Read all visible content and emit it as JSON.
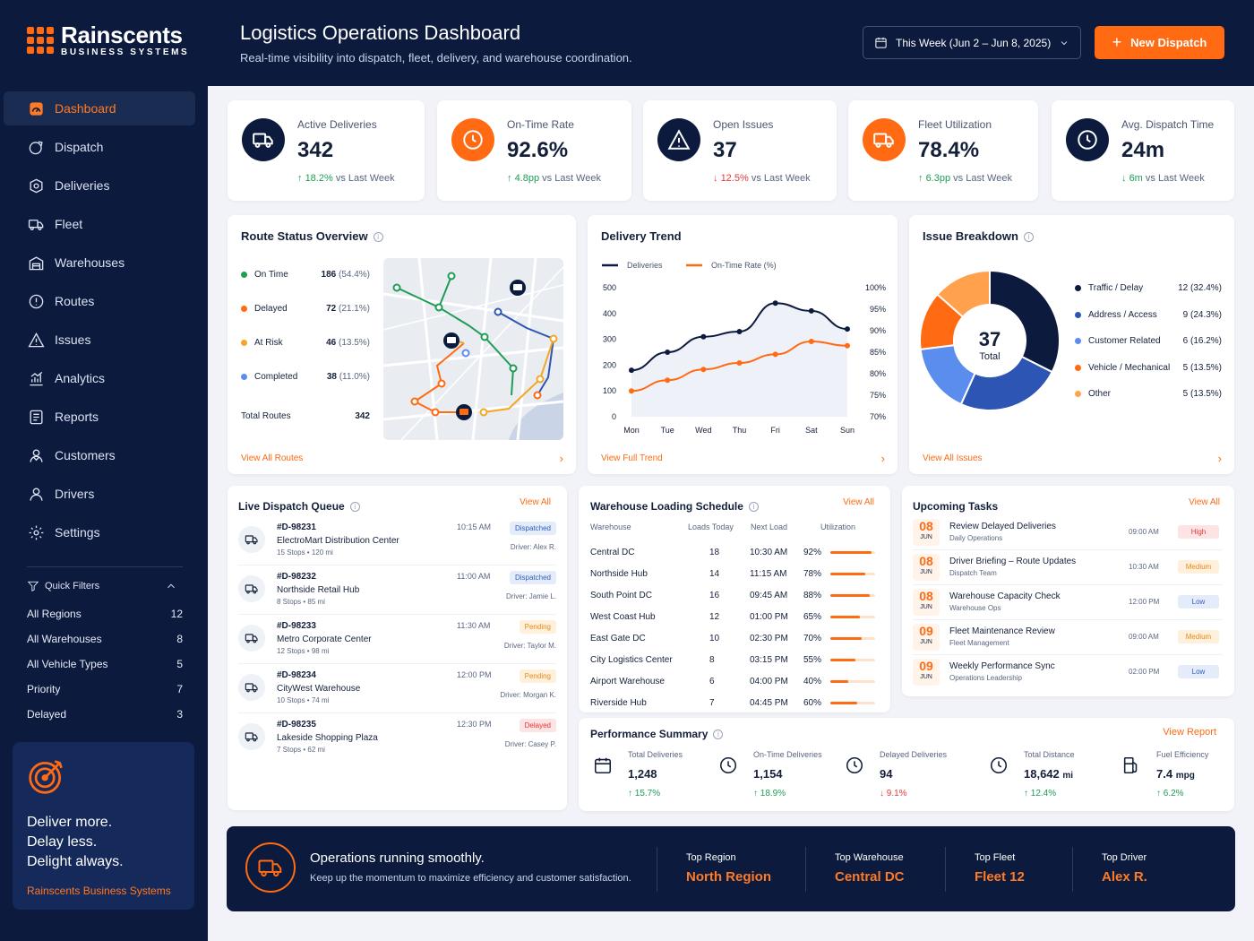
{
  "brand": {
    "name": "Rainscents",
    "sub": "BUSINESS SYSTEMS"
  },
  "nav": [
    {
      "label": "Dashboard",
      "icon": "dashboard-icon",
      "active": true
    },
    {
      "label": "Dispatch",
      "icon": "dispatch-icon"
    },
    {
      "label": "Deliveries",
      "icon": "deliveries-icon"
    },
    {
      "label": "Fleet",
      "icon": "truck-icon"
    },
    {
      "label": "Warehouses",
      "icon": "warehouse-icon"
    },
    {
      "label": "Routes",
      "icon": "routes-icon"
    },
    {
      "label": "Issues",
      "icon": "warning-icon"
    },
    {
      "label": "Analytics",
      "icon": "analytics-icon"
    },
    {
      "label": "Reports",
      "icon": "reports-icon"
    },
    {
      "label": "Customers",
      "icon": "customers-icon"
    },
    {
      "label": "Drivers",
      "icon": "driver-icon"
    },
    {
      "label": "Settings",
      "icon": "gear-icon"
    }
  ],
  "quick_filters": {
    "title": "Quick Filters",
    "items": [
      {
        "label": "All Regions",
        "count": "12"
      },
      {
        "label": "All Warehouses",
        "count": "8"
      },
      {
        "label": "All Vehicle Types",
        "count": "5"
      },
      {
        "label": "Priority",
        "count": "7"
      },
      {
        "label": "Delayed",
        "count": "3"
      }
    ]
  },
  "promo": {
    "line1": "Deliver more.",
    "line2": "Delay less.",
    "line3": "Delight always.",
    "brand": "Rainscents Business Systems"
  },
  "header": {
    "title": "Logistics Operations Dashboard",
    "subtitle": "Real-time visibility into dispatch, fleet, delivery, and warehouse coordination.",
    "date_range": "This Week (Jun 2 – Jun 8, 2025)",
    "new_dispatch": "New Dispatch"
  },
  "kpis": [
    {
      "label": "Active Deliveries",
      "value": "342",
      "delta": "18.2%",
      "dir": "up",
      "suffix": "vs Last Week",
      "color": "#0c1b3d",
      "icon": "truck-icon"
    },
    {
      "label": "On-Time Rate",
      "value": "92.6%",
      "delta": "4.8pp",
      "dir": "up",
      "suffix": "vs Last Week",
      "color": "#ff6a13",
      "icon": "clock-icon"
    },
    {
      "label": "Open Issues",
      "value": "37",
      "delta": "12.5%",
      "dir": "down",
      "suffix": "vs Last Week",
      "color": "#0c1b3d",
      "icon": "warning-icon"
    },
    {
      "label": "Fleet Utilization",
      "value": "78.4%",
      "delta": "6.3pp",
      "dir": "up",
      "suffix": "vs Last Week",
      "color": "#ff6a13",
      "icon": "truck-icon"
    },
    {
      "label": "Avg. Dispatch Time",
      "value": "24m",
      "delta": "6m",
      "dir": "down-good",
      "suffix": "vs Last Week",
      "color": "#0c1b3d",
      "icon": "clock-icon"
    }
  ],
  "route_status": {
    "title": "Route Status Overview",
    "items": [
      {
        "label": "On Time",
        "value": "186",
        "pct": "(54.4%)",
        "color": "#1f9d55"
      },
      {
        "label": "Delayed",
        "value": "72",
        "pct": "(21.1%)",
        "color": "#ff6a13"
      },
      {
        "label": "At Risk",
        "value": "46",
        "pct": "(13.5%)",
        "color": "#f5a623"
      },
      {
        "label": "Completed",
        "value": "38",
        "pct": "(11.0%)",
        "color": "#5b8def"
      }
    ],
    "total_label": "Total Routes",
    "total": "342",
    "link": "View All Routes"
  },
  "delivery_trend": {
    "title": "Delivery Trend",
    "link": "View Full Trend"
  },
  "chart_data": {
    "type": "line",
    "categories": [
      "Mon",
      "Tue",
      "Wed",
      "Thu",
      "Fri",
      "Sat",
      "Sun"
    ],
    "series": [
      {
        "name": "Deliveries",
        "axis": "left",
        "color": "#0c1b3d",
        "values": [
          180,
          250,
          310,
          330,
          440,
          410,
          340
        ]
      },
      {
        "name": "On-Time Rate (%)",
        "axis": "right",
        "color": "#ff6a13",
        "values": [
          76,
          78.5,
          81,
          82.5,
          84.5,
          87.5,
          86.5
        ]
      }
    ],
    "y_left": {
      "ticks": [
        "0",
        "100",
        "200",
        "300",
        "400",
        "500"
      ],
      "range": [
        0,
        500
      ]
    },
    "y_right": {
      "ticks": [
        "70%",
        "75%",
        "80%",
        "85%",
        "90%",
        "95%",
        "100%"
      ],
      "range": [
        70,
        100
      ]
    }
  },
  "issues": {
    "title": "Issue Breakdown",
    "total": "37",
    "total_label": "Total",
    "link": "View All Issues",
    "items": [
      {
        "label": "Traffic / Delay",
        "value": "12",
        "pct": "(32.4%)",
        "color": "#0c1b3d",
        "share": 32.4
      },
      {
        "label": "Address / Access",
        "value": "9",
        "pct": "(24.3%)",
        "color": "#2d55b4",
        "share": 24.3
      },
      {
        "label": "Customer Related",
        "value": "6",
        "pct": "(16.2%)",
        "color": "#5b8def",
        "share": 16.2
      },
      {
        "label": "Vehicle / Mechanical",
        "value": "5",
        "pct": "(13.5%)",
        "color": "#ff6a13",
        "share": 13.5
      },
      {
        "label": "Other",
        "value": "5",
        "pct": "(13.5%)",
        "color": "#ffa14d",
        "share": 13.5
      }
    ]
  },
  "dispatch_queue": {
    "title": "Live Dispatch Queue",
    "link": "View All",
    "items": [
      {
        "id": "#D-98231",
        "place": "ElectroMart Distribution Center",
        "meta": "15 Stops • 120 mi",
        "time": "10:15 AM",
        "status": "Dispatched",
        "cls": "dispatched",
        "driver": "Driver: Alex R."
      },
      {
        "id": "#D-98232",
        "place": "Northside Retail Hub",
        "meta": "8 Stops • 85 mi",
        "time": "11:00 AM",
        "status": "Dispatched",
        "cls": "dispatched",
        "driver": "Driver: Jamie L."
      },
      {
        "id": "#D-98233",
        "place": "Metro Corporate Center",
        "meta": "12 Stops • 98 mi",
        "time": "11:30 AM",
        "status": "Pending",
        "cls": "pending",
        "driver": "Driver: Taylor M."
      },
      {
        "id": "#D-98234",
        "place": "CityWest Warehouse",
        "meta": "10 Stops • 74 mi",
        "time": "12:00 PM",
        "status": "Pending",
        "cls": "pending",
        "driver": "Driver: Morgan K."
      },
      {
        "id": "#D-98235",
        "place": "Lakeside Shopping Plaza",
        "meta": "7 Stops • 62 mi",
        "time": "12:30 PM",
        "status": "Delayed",
        "cls": "delayed",
        "driver": "Driver: Casey P."
      }
    ]
  },
  "warehouse": {
    "title": "Warehouse Loading Schedule",
    "link": "View All",
    "cols": [
      "Warehouse",
      "Loads Today",
      "Next Load",
      "Utilization"
    ],
    "rows": [
      {
        "name": "Central DC",
        "loads": "18",
        "next": "10:30 AM",
        "util": "92%",
        "u": 92
      },
      {
        "name": "Northside Hub",
        "loads": "14",
        "next": "11:15 AM",
        "util": "78%",
        "u": 78
      },
      {
        "name": "South Point DC",
        "loads": "16",
        "next": "09:45 AM",
        "util": "88%",
        "u": 88
      },
      {
        "name": "West Coast Hub",
        "loads": "12",
        "next": "01:00 PM",
        "util": "65%",
        "u": 65
      },
      {
        "name": "East Gate DC",
        "loads": "10",
        "next": "02:30 PM",
        "util": "70%",
        "u": 70
      },
      {
        "name": "City Logistics Center",
        "loads": "8",
        "next": "03:15 PM",
        "util": "55%",
        "u": 55
      },
      {
        "name": "Airport Warehouse",
        "loads": "6",
        "next": "04:00 PM",
        "util": "40%",
        "u": 40
      },
      {
        "name": "Riverside Hub",
        "loads": "7",
        "next": "04:45 PM",
        "util": "60%",
        "u": 60
      }
    ]
  },
  "tasks": {
    "title": "Upcoming Tasks",
    "link": "View All",
    "items": [
      {
        "day": "08",
        "mon": "JUN",
        "title": "Review Delayed Deliveries",
        "team": "Daily Operations",
        "time": "09:00 AM",
        "priority": "High",
        "cls": "high"
      },
      {
        "day": "08",
        "mon": "JUN",
        "title": "Driver Briefing – Route Updates",
        "team": "Dispatch Team",
        "time": "10:30 AM",
        "priority": "Medium",
        "cls": "medium"
      },
      {
        "day": "08",
        "mon": "JUN",
        "title": "Warehouse Capacity Check",
        "team": "Warehouse Ops",
        "time": "12:00 PM",
        "priority": "Low",
        "cls": "low"
      },
      {
        "day": "09",
        "mon": "JUN",
        "title": "Fleet Maintenance Review",
        "team": "Fleet Management",
        "time": "09:00 AM",
        "priority": "Medium",
        "cls": "medium"
      },
      {
        "day": "09",
        "mon": "JUN",
        "title": "Weekly Performance Sync",
        "team": "Operations Leadership",
        "time": "02:00 PM",
        "priority": "Low",
        "cls": "low"
      }
    ]
  },
  "performance": {
    "title": "Performance Summary",
    "link": "View Report",
    "items": [
      {
        "label": "Total Deliveries",
        "value": "1,248",
        "unit": "",
        "delta": "15.7%",
        "dir": "up",
        "icon": "calendar-icon"
      },
      {
        "label": "On-Time Deliveries",
        "value": "1,154",
        "unit": "",
        "delta": "18.9%",
        "dir": "up",
        "icon": "clock-icon"
      },
      {
        "label": "Delayed Deliveries",
        "value": "94",
        "unit": "",
        "delta": "9.1%",
        "dir": "down",
        "icon": "clock-icon"
      },
      {
        "label": "Total Distance",
        "value": "18,642",
        "unit": "mi",
        "delta": "12.4%",
        "dir": "up",
        "icon": "clock-icon"
      },
      {
        "label": "Fuel Efficiency",
        "value": "7.4",
        "unit": "mpg",
        "delta": "6.2%",
        "dir": "up",
        "icon": "fuel-icon"
      }
    ]
  },
  "banner": {
    "title": "Operations running smoothly.",
    "subtitle": "Keep up the momentum to maximize efficiency and customer satisfaction.",
    "stats": [
      {
        "label": "Top Region",
        "value": "North Region"
      },
      {
        "label": "Top Warehouse",
        "value": "Central DC"
      },
      {
        "label": "Top Fleet",
        "value": "Fleet 12"
      },
      {
        "label": "Top Driver",
        "value": "Alex R."
      }
    ]
  }
}
